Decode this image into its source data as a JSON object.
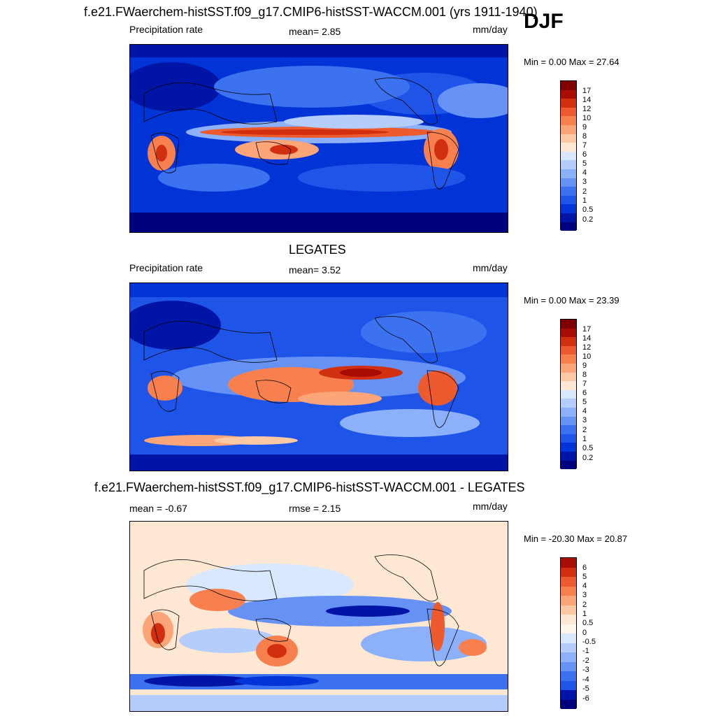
{
  "season": "DJF",
  "panels": [
    {
      "title": "f.e21.FWaerchem-histSST.f09_g17.CMIP6-histSST-WACCM.001 (yrs 1911-1940)",
      "left_label": "Precipitation rate",
      "center_label": "mean=   2.85",
      "right_label": "mm/day",
      "minmax": "Min =   0.00 Max =  27.64",
      "colorbar_labels": [
        "17",
        "14",
        "12",
        "10",
        "9",
        "8",
        "7",
        "6",
        "5",
        "4",
        "3",
        "2",
        "1",
        "0.5",
        "0.2"
      ]
    },
    {
      "title": "LEGATES",
      "left_label": "Precipitation rate",
      "center_label": "mean=   3.52",
      "right_label": "mm/day",
      "minmax": "Min =   0.00 Max =  23.39",
      "colorbar_labels": [
        "17",
        "14",
        "12",
        "10",
        "9",
        "8",
        "7",
        "6",
        "5",
        "4",
        "3",
        "2",
        "1",
        "0.5",
        "0.2"
      ]
    },
    {
      "title": "f.e21.FWaerchem-histSST.f09_g17.CMIP6-histSST-WACCM.001 - LEGATES",
      "left_label": "mean =  -0.67",
      "center_label": "rmse =   2.15",
      "right_label": "mm/day",
      "minmax": "Min = -20.30 Max =  20.87",
      "colorbar_labels": [
        "6",
        "5",
        "4",
        "3",
        "2",
        "1",
        "0.5",
        "0",
        "-0.5",
        "-1",
        "-2",
        "-3",
        "-4",
        "-5",
        "-6"
      ]
    }
  ],
  "colors": {
    "precip_scale": [
      "#00007f",
      "#0014a6",
      "#0034d6",
      "#1e55e8",
      "#3c72f0",
      "#6692f5",
      "#8cb0fa",
      "#b4cdfc",
      "#dae8fe",
      "#fee8d4",
      "#fdc8a4",
      "#fca578",
      "#f8804f",
      "#ec5a2d",
      "#d22f10",
      "#a80d04",
      "#7f0000"
    ],
    "diff_scale": [
      "#00007f",
      "#0014a6",
      "#0034d6",
      "#1e55e8",
      "#3c72f0",
      "#6692f5",
      "#8cb0fa",
      "#b4cdfc",
      "#dae8fe",
      "#fee8d4",
      "#fdc8a4",
      "#fca578",
      "#f8804f",
      "#ec5a2d",
      "#d22f10",
      "#a80d04"
    ]
  }
}
